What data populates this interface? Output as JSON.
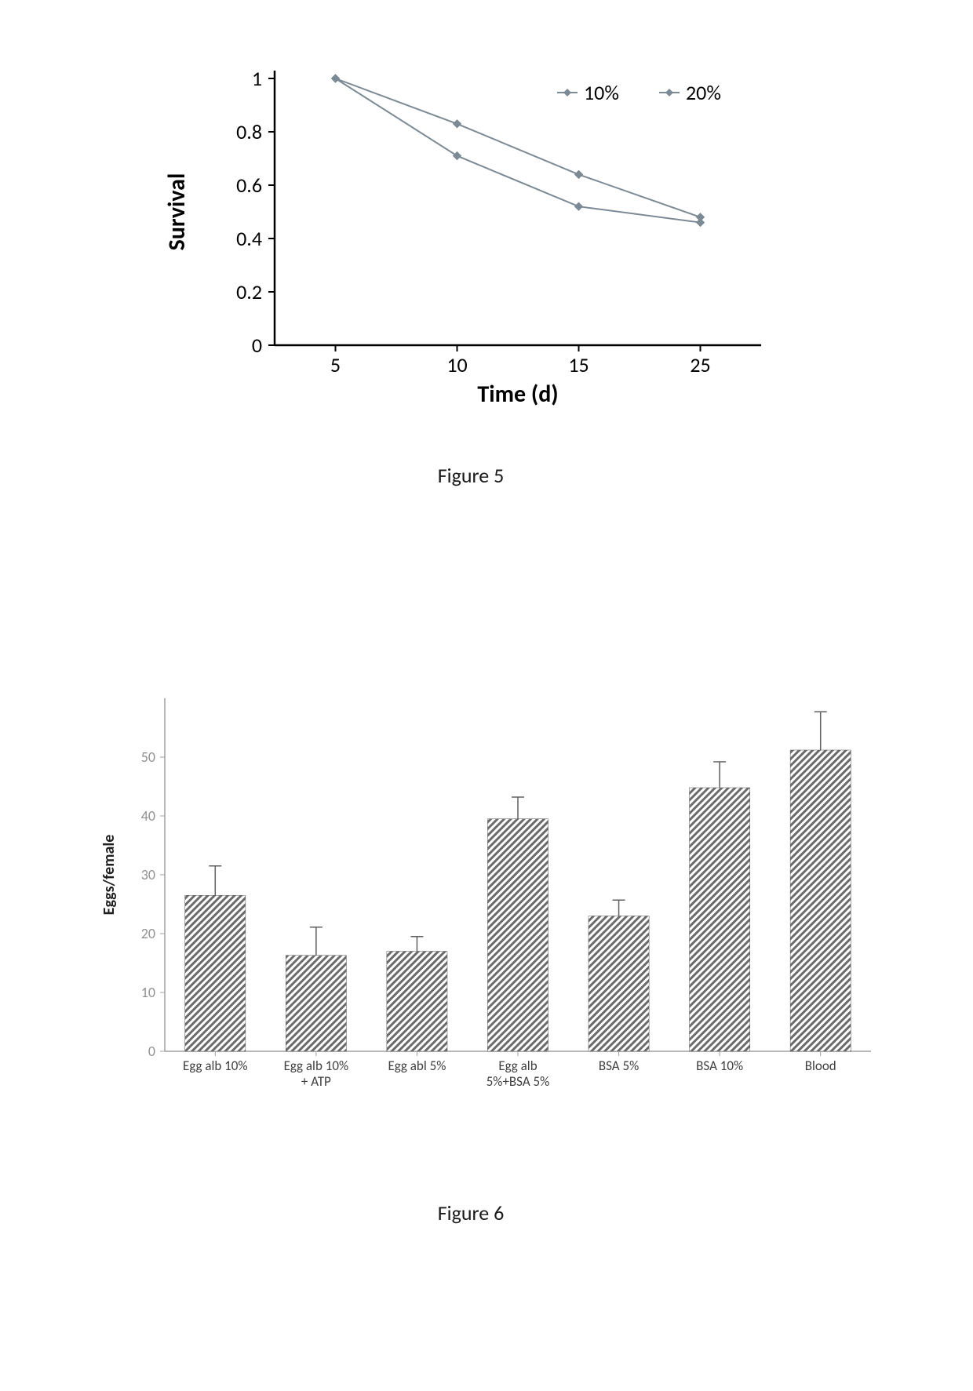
{
  "figure5": {
    "type": "line",
    "caption": "Figure 5",
    "ylabel": "Survival",
    "xlabel": "Time (d)",
    "yticks": [
      0,
      0.2,
      0.4,
      0.6,
      0.8,
      1
    ],
    "xticks": [
      5,
      10,
      15,
      25
    ],
    "ylim": [
      0,
      1
    ],
    "xlim_categorical": true,
    "legend_labels": [
      "10%",
      "20%"
    ],
    "series": [
      {
        "label": "10%",
        "y": [
          1.0,
          0.71,
          0.52,
          0.46
        ],
        "color": "#7b8a94",
        "marker": "diamond"
      },
      {
        "label": "20%",
        "y": [
          1.0,
          0.83,
          0.64,
          0.48
        ],
        "color": "#7b8a94",
        "marker": "diamond"
      }
    ],
    "axis_color": "#000000",
    "line_width": 2,
    "label_fontsize": 30,
    "tick_fontsize": 26,
    "legend_fontsize": 26
  },
  "figure6": {
    "type": "bar",
    "caption": "Figure 6",
    "ylabel": "Eggs/female",
    "yticks": [
      0,
      10,
      20,
      30,
      40,
      50
    ],
    "ylim": [
      0,
      60
    ],
    "categories": [
      "Egg alb 10%",
      "Egg alb 10% + ATP",
      "Egg abl 5%",
      "Egg alb 5%+BSA 5%",
      "BSA 5%",
      "BSA 10%",
      "Blood"
    ],
    "values": [
      26.5,
      16.3,
      17.0,
      39.5,
      23.0,
      44.8,
      51.2
    ],
    "errors": [
      5.0,
      4.8,
      2.5,
      3.7,
      2.7,
      4.4,
      6.5
    ],
    "bar_color_pattern": "#6b6b6b",
    "background": "#ffffff",
    "axis_color": "#a0a0a0",
    "tick_color": "#909090",
    "label_fontsize": 20,
    "tick_fontsize": 18,
    "xlabel_fontsize": 17,
    "error_color": "#606060",
    "bar_width_ratio": 0.6
  }
}
